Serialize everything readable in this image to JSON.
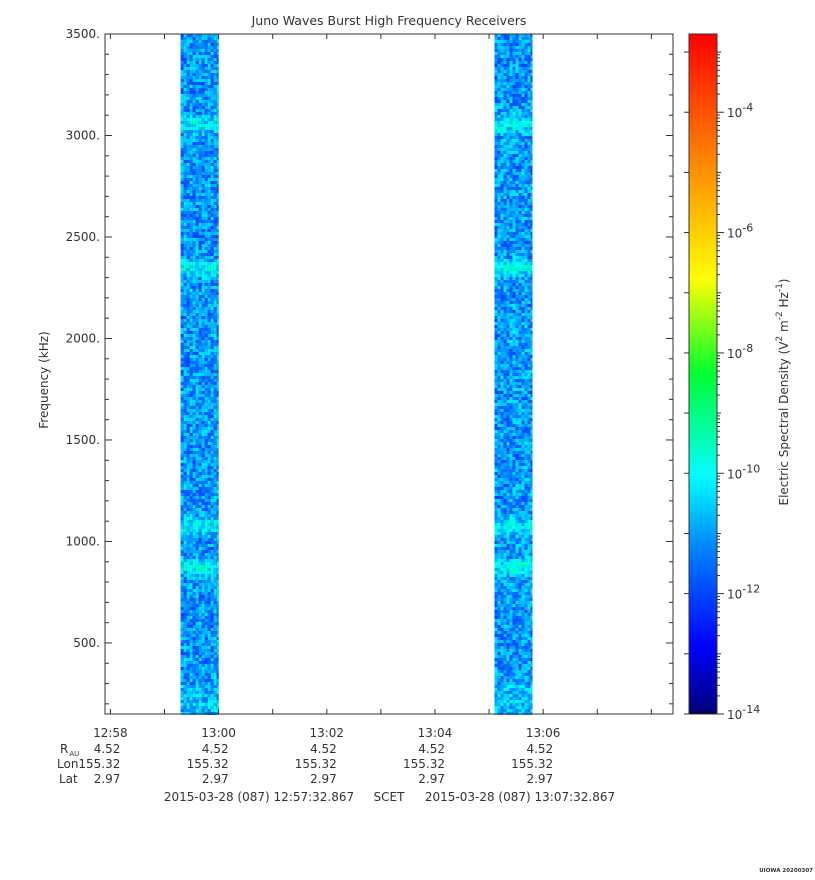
{
  "chart_data": {
    "type": "heatmap",
    "title": "Juno Waves Burst High Frequency Receivers",
    "ylabel": "Frequency (kHz)",
    "colorbar_label_parts": [
      "Electric Spectral Density (V",
      "2",
      " m",
      "-2",
      " Hz",
      "-1",
      ")"
    ],
    "ylim": [
      150,
      3500
    ],
    "yticks": [
      500,
      1000,
      1500,
      2000,
      2500,
      3000,
      3500
    ],
    "ytick_labels": [
      "500.",
      "1000.",
      "1500.",
      "2000.",
      "2500.",
      "3000.",
      "3500."
    ],
    "xlim_minutes": [
      -2.1,
      8.4
    ],
    "xticks": [
      "12:58",
      "13:00",
      "13:02",
      "13:04",
      "13:06"
    ],
    "xtick_minutes": [
      -2,
      0,
      2,
      4,
      6
    ],
    "colorbar": {
      "scale": "log",
      "range_exp": [
        -14,
        -2.7
      ],
      "tick_exps": [
        -14,
        -12,
        -10,
        -8,
        -6,
        -4
      ],
      "tick_base": "10",
      "tick_exp_labels": [
        "-14",
        "-12",
        "-10",
        "-8",
        "-6",
        "-4"
      ]
    },
    "bursts": [
      {
        "start_minutes": -0.7,
        "end_minutes": 0.0,
        "typical_exp": -11.8,
        "enhanced_exp": -11.1
      },
      {
        "start_minutes": 5.1,
        "end_minutes": 5.8,
        "typical_exp": -11.8,
        "enhanced_exp": -11.1
      }
    ],
    "enhanced_bands_khz": [
      880,
      1080,
      2350,
      3060
    ],
    "ephemeris": {
      "row_labels": {
        "r": "R",
        "r_sub": "AU",
        "lon": "Lon",
        "lat": "Lat"
      },
      "r_values": [
        "4.52",
        "4.52",
        "4.52",
        "4.52",
        "4.52"
      ],
      "lon_values": [
        "155.32",
        "155.32",
        "155.32",
        "155.32",
        "155.32"
      ],
      "lat_values": [
        "2.97",
        "2.97",
        "2.97",
        "2.97",
        "2.97"
      ]
    },
    "time_range": {
      "start": "2015-03-28 (087) 12:57:32.867",
      "scet": "SCET",
      "end": "2015-03-28 (087) 13:07:32.867"
    },
    "stamp": "UIOWA 20200307"
  }
}
